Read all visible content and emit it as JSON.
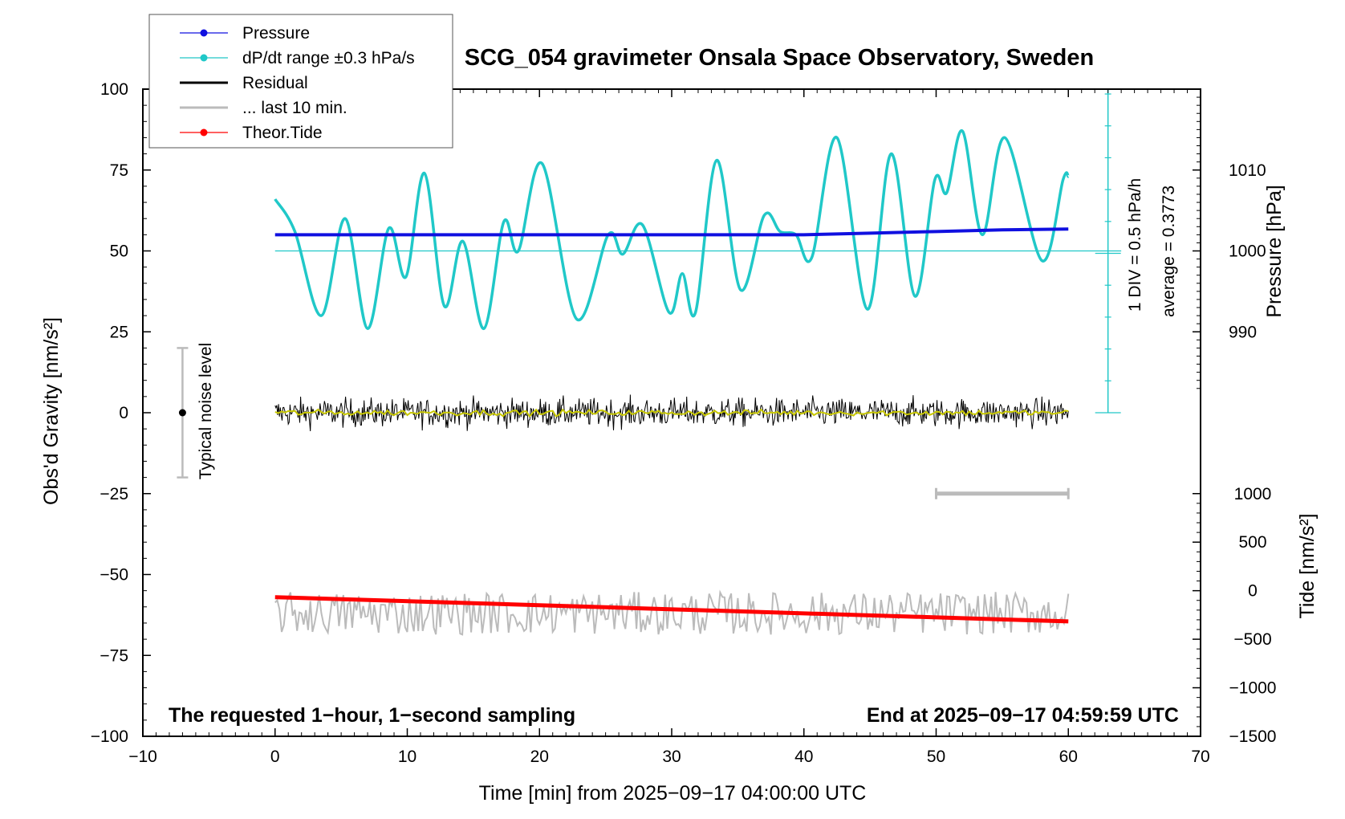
{
  "chart_data": {
    "type": "line",
    "title": "SCG_054 gravimeter Onsala Space Observatory, Sweden",
    "xlabel": "Time [min] from 2025−09−17 04:00:00 UTC",
    "xlim": [
      -10,
      70
    ],
    "x_ticks": [
      "−10",
      "0",
      "10",
      "20",
      "30",
      "40",
      "50",
      "60",
      "70"
    ],
    "ylabel_left": "Obs'd Gravity [nm/s²]",
    "ylim_left": [
      -100,
      100
    ],
    "y_left_ticks": [
      "−100",
      "−75",
      "−50",
      "−25",
      "0",
      "25",
      "50",
      "75",
      "100"
    ],
    "pressure_axis": {
      "label": "Pressure [hPa]",
      "ticks": [
        "990",
        "1000",
        "1010"
      ],
      "center_value": 1000
    },
    "tide_axis": {
      "label": "Tide [nm/s²]",
      "ticks": [
        "−1500",
        "−1000",
        "−500",
        "0",
        "500",
        "1000"
      ]
    },
    "dpdt_scale": {
      "div_label": "1 DIV = 0.5 hPa/h",
      "average_label": "average = 0.3773"
    },
    "noise_bar": {
      "label": "Typical noise level",
      "center": 0,
      "low": -20,
      "high": 20
    },
    "ten_min_bar": {
      "x_start": 50,
      "x_end": 60,
      "y": -25
    },
    "annotations": {
      "left": "The requested 1−hour, 1−second sampling",
      "right": "End at 2025−09−17 04:59:59 UTC"
    },
    "legend": [
      {
        "label": "Pressure",
        "color": "#1010e0",
        "marker": true
      },
      {
        "label": "dP/dt range ±0.3 hPa/s",
        "color": "#20c8c8",
        "marker": true
      },
      {
        "label": "Residual",
        "color": "#000000",
        "marker": false
      },
      {
        "label": "... last 10 min.",
        "color": "#bbbbbb",
        "marker": false
      },
      {
        "label": "Theor.Tide",
        "color": "#ff0000",
        "marker": true
      }
    ],
    "series": [
      {
        "name": "Pressure",
        "color": "#1010e0",
        "x": [
          0,
          10,
          20,
          30,
          35,
          40,
          45,
          50,
          55,
          60
        ],
        "y": [
          1002.0,
          1002.0,
          1002.0,
          1002.0,
          1002.0,
          1002.0,
          1002.2,
          1002.4,
          1002.6,
          1002.7
        ]
      },
      {
        "name": "dP/dt range ±0.3 hPa/s",
        "color": "#20c8c8",
        "x": [
          0,
          1.5,
          3.5,
          5.3,
          7.0,
          8.6,
          9.9,
          11.3,
          12.8,
          14.2,
          15.8,
          17.3,
          18.4,
          20.2,
          22.8,
          25.2,
          26.3,
          27.8,
          29.8,
          30.8,
          31.8,
          33.4,
          35.2,
          37.0,
          38.2,
          39.4,
          40.6,
          42.5,
          44.8,
          46.6,
          48.4,
          49.9,
          50.8,
          52.0,
          53.5,
          55.2,
          58.0,
          59.6,
          60.0
        ],
        "y": [
          66,
          56,
          30,
          60,
          26,
          57,
          42,
          74,
          33,
          53,
          26,
          59,
          50,
          77,
          29,
          55,
          49,
          58,
          31,
          43,
          31,
          78,
          38,
          61,
          56,
          55,
          48,
          85,
          32,
          80,
          36,
          72,
          68,
          87,
          55,
          85,
          47,
          72,
          73
        ]
      },
      {
        "name": "Residual",
        "color": "#000000",
        "x_range": [
          0,
          60
        ],
        "amplitude": 8,
        "mean": 0
      },
      {
        "name": "Residual (smoothed)",
        "color": "#c8c800",
        "x_range": [
          0,
          60
        ],
        "mean": 0
      },
      {
        "name": "... last 10 min.",
        "color": "#bbbbbb",
        "x_range": [
          0,
          60
        ],
        "mean": -62,
        "amplitude": 6
      },
      {
        "name": "Theor.Tide",
        "color": "#ff0000",
        "x": [
          0,
          60
        ],
        "y": [
          -57,
          -64.5
        ]
      }
    ]
  }
}
